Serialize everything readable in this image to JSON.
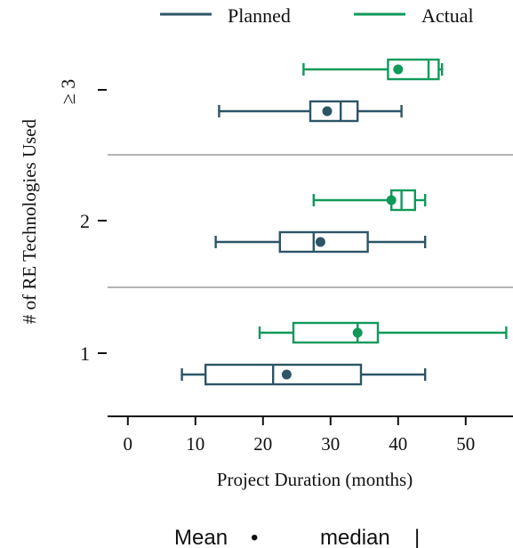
{
  "chart_data": {
    "type": "boxplot",
    "orientation": "horizontal",
    "xlabel": "Project Duration (months)",
    "ylabel": "# of RE Technologies Used",
    "xlim": [
      -3,
      57
    ],
    "x_ticks": [
      0,
      10,
      20,
      30,
      40,
      50
    ],
    "categories": [
      "1",
      "2",
      "≥ 3"
    ],
    "legend_position": "top",
    "grid": false,
    "series": [
      {
        "name": "Planned",
        "color": "#2d5566",
        "boxes": [
          {
            "category": "1",
            "min": 8,
            "q1": 11.5,
            "median": 21.5,
            "q3": 34.5,
            "max": 44,
            "mean": 23.5
          },
          {
            "category": "2",
            "min": 13,
            "q1": 22.5,
            "median": 27.5,
            "q3": 35.5,
            "max": 44,
            "mean": 28.5
          },
          {
            "category": "≥ 3",
            "min": 13.5,
            "q1": 27,
            "median": 31.5,
            "q3": 34,
            "max": 40.5,
            "mean": 29.5
          }
        ]
      },
      {
        "name": "Actual",
        "color": "#0f9a5a",
        "boxes": [
          {
            "category": "1",
            "min": 19.5,
            "q1": 24.5,
            "median": 34,
            "q3": 37,
            "max": 56,
            "mean": 34
          },
          {
            "category": "2",
            "min": 27.5,
            "q1": 39,
            "median": 40.5,
            "q3": 42.5,
            "max": 44,
            "mean": 39
          },
          {
            "category": "≥ 3",
            "min": 26,
            "q1": 38.5,
            "median": 44.5,
            "q3": 46,
            "max": 46.5,
            "mean": 40
          }
        ]
      }
    ],
    "footnote": {
      "mean_label": "Mean",
      "mean_symbol": "•",
      "median_label": "median",
      "median_symbol": "|"
    }
  }
}
